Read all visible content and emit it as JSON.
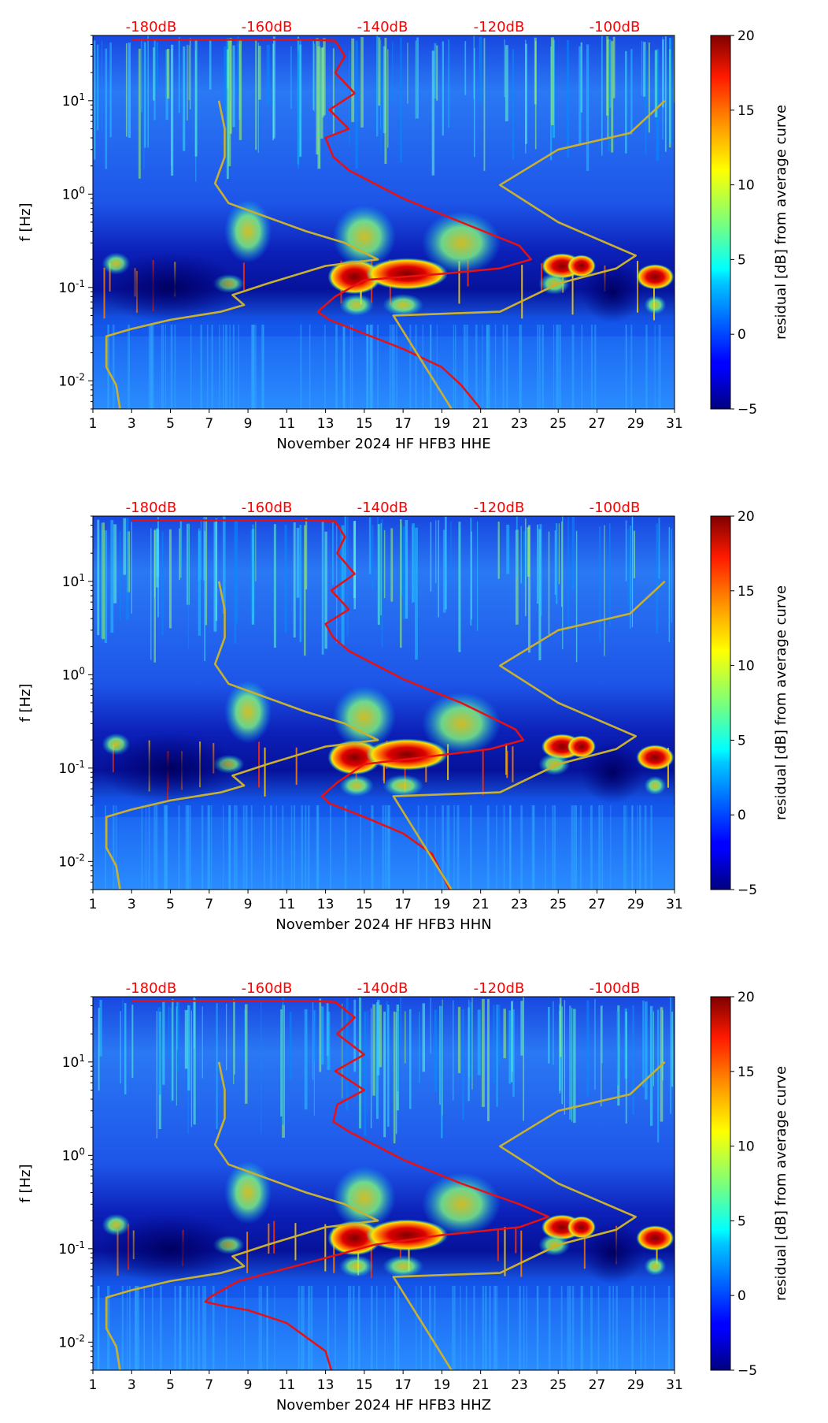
{
  "chart_data": [
    {
      "type": "heatmap",
      "title": "",
      "xlabel": "November 2024 HF HFB3  HHE",
      "ylabel": "f [Hz]",
      "x_ticks": [
        "1",
        "3",
        "5",
        "7",
        "9",
        "11",
        "13",
        "15",
        "17",
        "19",
        "21",
        "23",
        "25",
        "27",
        "29",
        "31"
      ],
      "xlim": [
        1,
        31
      ],
      "y_ticks": [
        "10^-2",
        "10^-1",
        "10^0",
        "10^1"
      ],
      "ylim": [
        0.005,
        50
      ],
      "colorbar": {
        "label": "residual [dB] from average curve",
        "ticks": [
          "20",
          "15",
          "10",
          "5",
          "0",
          "−5"
        ],
        "range": [
          -5,
          20
        ]
      },
      "db_scale": [
        "-180dB",
        "-160dB",
        "-140dB",
        "-120dB",
        "-100dB"
      ],
      "series": [
        {
          "name": "average PSD curve",
          "color": "#e81010",
          "points": [
            [
              3,
              45
            ],
            [
              12,
              45
            ],
            [
              13.5,
              44
            ],
            [
              14,
              30
            ],
            [
              13.5,
              20
            ],
            [
              14.5,
              12
            ],
            [
              13.2,
              8
            ],
            [
              14.2,
              5
            ],
            [
              13,
              4
            ],
            [
              13.4,
              2.5
            ],
            [
              14.2,
              1.8
            ],
            [
              17,
              0.9
            ],
            [
              20,
              0.5
            ],
            [
              23,
              0.28
            ],
            [
              23.6,
              0.2
            ],
            [
              22,
              0.16
            ],
            [
              19,
              0.14
            ],
            [
              15,
              0.12
            ],
            [
              13.5,
              0.08
            ],
            [
              12.6,
              0.055
            ],
            [
              13.2,
              0.045
            ],
            [
              15,
              0.032
            ],
            [
              17,
              0.022
            ],
            [
              19,
              0.014
            ],
            [
              20,
              0.009
            ],
            [
              21,
              0.005
            ]
          ]
        },
        {
          "name": "noise model curves",
          "color": "#c8b030",
          "points": [
            [
              2.4,
              0.005
            ],
            [
              2.2,
              0.009
            ],
            [
              1.7,
              0.014
            ],
            [
              1.7,
              0.03
            ],
            [
              3,
              0.036
            ],
            [
              5,
              0.045
            ],
            [
              7.6,
              0.055
            ],
            [
              8.8,
              0.065
            ],
            [
              8.2,
              0.083
            ],
            [
              10,
              0.11
            ],
            [
              13,
              0.17
            ],
            [
              15.7,
              0.2
            ],
            [
              14,
              0.3
            ],
            [
              12,
              0.4
            ],
            [
              8,
              0.8
            ],
            [
              7.3,
              1.3
            ],
            [
              7.8,
              2.5
            ],
            [
              7.8,
              5
            ],
            [
              7.5,
              10
            ]
          ]
        },
        {
          "name": "noise model curves (2)",
          "color": "#c8b030",
          "points": [
            [
              19.5,
              0.005
            ],
            [
              16.5,
              0.05
            ],
            [
              22,
              0.055
            ],
            [
              25,
              0.11
            ],
            [
              28,
              0.16
            ],
            [
              29,
              0.22
            ],
            [
              25,
              0.5
            ],
            [
              22,
              1.25
            ],
            [
              25,
              3.0
            ],
            [
              28.7,
              4.5
            ],
            [
              30.5,
              10
            ]
          ]
        }
      ]
    },
    {
      "type": "heatmap",
      "title": "",
      "xlabel": "November 2024 HF HFB3  HHN",
      "ylabel": "f [Hz]",
      "x_ticks": [
        "1",
        "3",
        "5",
        "7",
        "9",
        "11",
        "13",
        "15",
        "17",
        "19",
        "21",
        "23",
        "25",
        "27",
        "29",
        "31"
      ],
      "xlim": [
        1,
        31
      ],
      "y_ticks": [
        "10^-2",
        "10^-1",
        "10^0",
        "10^1"
      ],
      "ylim": [
        0.005,
        50
      ],
      "colorbar": {
        "label": "residual [dB] from average curve",
        "ticks": [
          "20",
          "15",
          "10",
          "5",
          "0",
          "−5"
        ],
        "range": [
          -5,
          20
        ]
      },
      "db_scale": [
        "-180dB",
        "-160dB",
        "-140dB",
        "-120dB",
        "-100dB"
      ],
      "series": [
        {
          "name": "average PSD curve",
          "color": "#e81010",
          "points": [
            [
              3,
              45
            ],
            [
              12,
              45
            ],
            [
              13.5,
              44
            ],
            [
              14,
              30
            ],
            [
              13.6,
              20
            ],
            [
              14.5,
              12
            ],
            [
              13.3,
              8
            ],
            [
              14.2,
              5
            ],
            [
              13,
              3.5
            ],
            [
              13.4,
              2.5
            ],
            [
              14.2,
              1.8
            ],
            [
              17,
              0.9
            ],
            [
              20,
              0.5
            ],
            [
              22.8,
              0.26
            ],
            [
              23.2,
              0.2
            ],
            [
              21.5,
              0.16
            ],
            [
              18,
              0.13
            ],
            [
              15,
              0.11
            ],
            [
              13.6,
              0.07
            ],
            [
              12.8,
              0.05
            ],
            [
              13.2,
              0.042
            ],
            [
              15,
              0.03
            ],
            [
              17,
              0.02
            ],
            [
              18.5,
              0.012
            ],
            [
              19.4,
              0.005
            ]
          ]
        },
        {
          "name": "noise model curves",
          "color": "#c8b030",
          "points": [
            [
              2.4,
              0.005
            ],
            [
              2.2,
              0.009
            ],
            [
              1.7,
              0.014
            ],
            [
              1.7,
              0.03
            ],
            [
              3,
              0.036
            ],
            [
              5,
              0.045
            ],
            [
              7.6,
              0.055
            ],
            [
              8.8,
              0.065
            ],
            [
              8.2,
              0.083
            ],
            [
              10,
              0.11
            ],
            [
              13,
              0.17
            ],
            [
              15.7,
              0.2
            ],
            [
              14,
              0.3
            ],
            [
              12,
              0.4
            ],
            [
              8,
              0.8
            ],
            [
              7.3,
              1.3
            ],
            [
              7.8,
              2.5
            ],
            [
              7.8,
              5
            ],
            [
              7.5,
              10
            ]
          ]
        },
        {
          "name": "noise model curves (2)",
          "color": "#c8b030",
          "points": [
            [
              19.5,
              0.005
            ],
            [
              16.5,
              0.05
            ],
            [
              22,
              0.055
            ],
            [
              25,
              0.11
            ],
            [
              28,
              0.16
            ],
            [
              29,
              0.22
            ],
            [
              25,
              0.5
            ],
            [
              22,
              1.25
            ],
            [
              25,
              3.0
            ],
            [
              28.7,
              4.5
            ],
            [
              30.5,
              10
            ]
          ]
        }
      ]
    },
    {
      "type": "heatmap",
      "title": "",
      "xlabel": "November 2024 HF HFB3  HHZ",
      "ylabel": "f [Hz]",
      "x_ticks": [
        "1",
        "3",
        "5",
        "7",
        "9",
        "11",
        "13",
        "15",
        "17",
        "19",
        "21",
        "23",
        "25",
        "27",
        "29",
        "31"
      ],
      "xlim": [
        1,
        31
      ],
      "y_ticks": [
        "10^-2",
        "10^-1",
        "10^0",
        "10^1"
      ],
      "ylim": [
        0.005,
        50
      ],
      "colorbar": {
        "label": "residual [dB] from average curve",
        "ticks": [
          "20",
          "15",
          "10",
          "5",
          "0",
          "−5"
        ],
        "range": [
          -5,
          20
        ]
      },
      "db_scale": [
        "-180dB",
        "-160dB",
        "-140dB",
        "-120dB",
        "-100dB"
      ],
      "series": [
        {
          "name": "average PSD curve",
          "color": "#e81010",
          "points": [
            [
              3,
              45
            ],
            [
              12,
              45
            ],
            [
              13.5,
              44
            ],
            [
              14.5,
              30
            ],
            [
              13.6,
              20
            ],
            [
              15,
              12
            ],
            [
              13.5,
              8
            ],
            [
              15,
              5
            ],
            [
              13.6,
              3.5
            ],
            [
              13.4,
              2.3
            ],
            [
              14.2,
              1.8
            ],
            [
              17,
              0.9
            ],
            [
              20,
              0.5
            ],
            [
              23,
              0.3
            ],
            [
              24.5,
              0.22
            ],
            [
              23,
              0.17
            ],
            [
              19,
              0.14
            ],
            [
              15.5,
              0.11
            ],
            [
              12,
              0.07
            ],
            [
              8.5,
              0.045
            ],
            [
              7,
              0.03
            ],
            [
              6.8,
              0.027
            ],
            [
              7.5,
              0.025
            ],
            [
              9,
              0.022
            ],
            [
              11,
              0.016
            ],
            [
              13,
              0.008
            ],
            [
              13.3,
              0.005
            ]
          ]
        },
        {
          "name": "noise model curves",
          "color": "#c8b030",
          "points": [
            [
              2.4,
              0.005
            ],
            [
              2.2,
              0.009
            ],
            [
              1.7,
              0.014
            ],
            [
              1.7,
              0.03
            ],
            [
              3,
              0.036
            ],
            [
              5,
              0.045
            ],
            [
              7.6,
              0.055
            ],
            [
              8.8,
              0.065
            ],
            [
              8.2,
              0.083
            ],
            [
              10,
              0.11
            ],
            [
              13,
              0.17
            ],
            [
              15.7,
              0.2
            ],
            [
              14,
              0.3
            ],
            [
              12,
              0.4
            ],
            [
              8,
              0.8
            ],
            [
              7.3,
              1.3
            ],
            [
              7.8,
              2.5
            ],
            [
              7.8,
              5
            ],
            [
              7.5,
              10
            ]
          ]
        },
        {
          "name": "noise model curves (2)",
          "color": "#c8b030",
          "points": [
            [
              19.5,
              0.005
            ],
            [
              16.5,
              0.05
            ],
            [
              22,
              0.055
            ],
            [
              25,
              0.11
            ],
            [
              28,
              0.16
            ],
            [
              29,
              0.22
            ],
            [
              25,
              0.5
            ],
            [
              22,
              1.25
            ],
            [
              25,
              3.0
            ],
            [
              28.7,
              4.5
            ],
            [
              30.5,
              10
            ]
          ]
        }
      ]
    }
  ]
}
